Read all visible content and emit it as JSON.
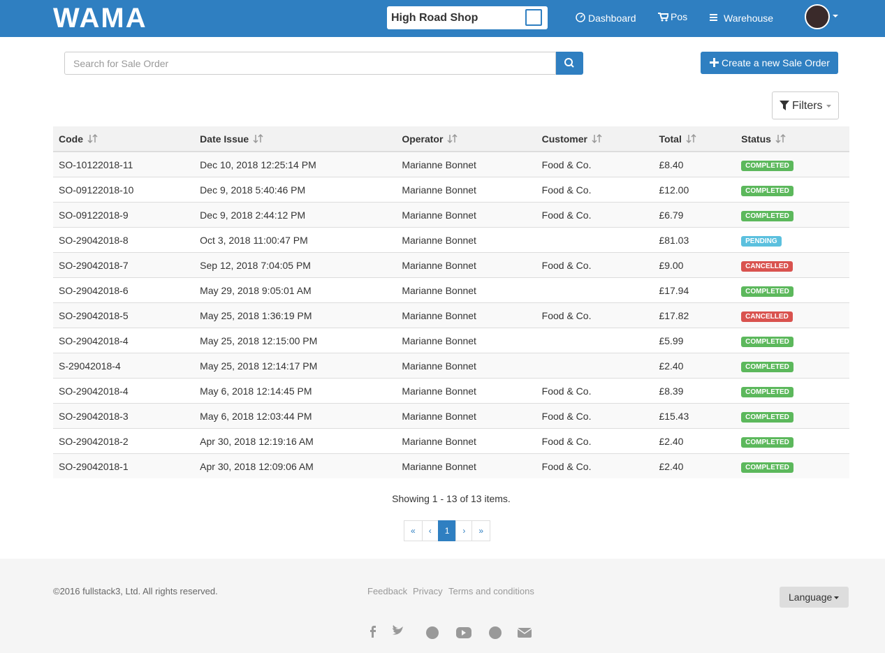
{
  "navbar": {
    "logo": "WAMA",
    "shop": "High Road Shop",
    "items": [
      "Dashboard",
      "Pos",
      "Warehouse"
    ]
  },
  "toolbar": {
    "search_placeholder": "Search for Sale Order",
    "create_button": "Create a new Sale Order",
    "filters_button": "Filters"
  },
  "table": {
    "headers": [
      "Code",
      "Date Issue",
      "Operator",
      "Customer",
      "Total",
      "Status"
    ],
    "rows": [
      {
        "code": "SO-10122018-11",
        "date": "Dec 10, 2018 12:25:14 PM",
        "operator": "Marianne Bonnet",
        "customer": "Food & Co.",
        "total": "£8.40",
        "status": "COMPLETED",
        "status_color": "#5cb85c"
      },
      {
        "code": "SO-09122018-10",
        "date": "Dec 9, 2018 5:40:46 PM",
        "operator": "Marianne Bonnet",
        "customer": "Food & Co.",
        "total": "£12.00",
        "status": "COMPLETED",
        "status_color": "#5cb85c"
      },
      {
        "code": "SO-09122018-9",
        "date": "Dec 9, 2018 2:44:12 PM",
        "operator": "Marianne Bonnet",
        "customer": "Food & Co.",
        "total": "£6.79",
        "status": "COMPLETED",
        "status_color": "#5cb85c"
      },
      {
        "code": "SO-29042018-8",
        "date": "Oct 3, 2018 11:00:47 PM",
        "operator": "Marianne Bonnet",
        "customer": null,
        "total": "£81.03",
        "status": "PENDING",
        "status_color": "#5bc0de"
      },
      {
        "code": "SO-29042018-7",
        "date": "Sep 12, 2018 7:04:05 PM",
        "operator": "Marianne Bonnet",
        "customer": "Food & Co.",
        "total": "£9.00",
        "status": "CANCELLED",
        "status_color": "#d9534f"
      },
      {
        "code": "SO-29042018-6",
        "date": "May 29, 2018 9:05:01 AM",
        "operator": "Marianne Bonnet",
        "customer": null,
        "total": "£17.94",
        "status": "COMPLETED",
        "status_color": "#5cb85c"
      },
      {
        "code": "SO-29042018-5",
        "date": "May 25, 2018 1:36:19 PM",
        "operator": "Marianne Bonnet",
        "customer": "Food & Co.",
        "total": "£17.82",
        "status": "CANCELLED",
        "status_color": "#d9534f"
      },
      {
        "code": "SO-29042018-4",
        "date": "May 25, 2018 12:15:00 PM",
        "operator": "Marianne Bonnet",
        "customer": null,
        "total": "£5.99",
        "status": "COMPLETED",
        "status_color": "#5cb85c"
      },
      {
        "code": "S-29042018-4",
        "date": "May 25, 2018 12:14:17 PM",
        "operator": "Marianne Bonnet",
        "customer": null,
        "total": "£2.40",
        "status": "COMPLETED",
        "status_color": "#5cb85c"
      },
      {
        "code": "SO-29042018-4",
        "date": "May 6, 2018 12:14:45 PM",
        "operator": "Marianne Bonnet",
        "customer": "Food & Co.",
        "total": "£8.39",
        "status": "COMPLETED",
        "status_color": "#5cb85c"
      },
      {
        "code": "SO-29042018-3",
        "date": "May 6, 2018 12:03:44 PM",
        "operator": "Marianne Bonnet",
        "customer": "Food & Co.",
        "total": "£15.43",
        "status": "COMPLETED",
        "status_color": "#5cb85c"
      },
      {
        "code": "SO-29042018-2",
        "date": "Apr 30, 2018 12:19:16 AM",
        "operator": "Marianne Bonnet",
        "customer": "Food & Co.",
        "total": "£2.40",
        "status": "COMPLETED",
        "status_color": "#5cb85c"
      },
      {
        "code": "SO-29042018-1",
        "date": "Apr 30, 2018 12:09:06 AM",
        "operator": "Marianne Bonnet",
        "customer": "Food & Co.",
        "total": "£2.40",
        "status": "COMPLETED",
        "status_color": "#5cb85c"
      }
    ]
  },
  "summary": "Showing 1 - 13 of 13 items.",
  "pagination": [
    "«",
    "‹",
    "1",
    "›",
    "»"
  ],
  "footer": {
    "copyright": "©2016 fullstack3, Ltd. All rights reserved.",
    "links": [
      "Feedback",
      "Privacy",
      "Terms and conditions"
    ],
    "language": "Language"
  }
}
